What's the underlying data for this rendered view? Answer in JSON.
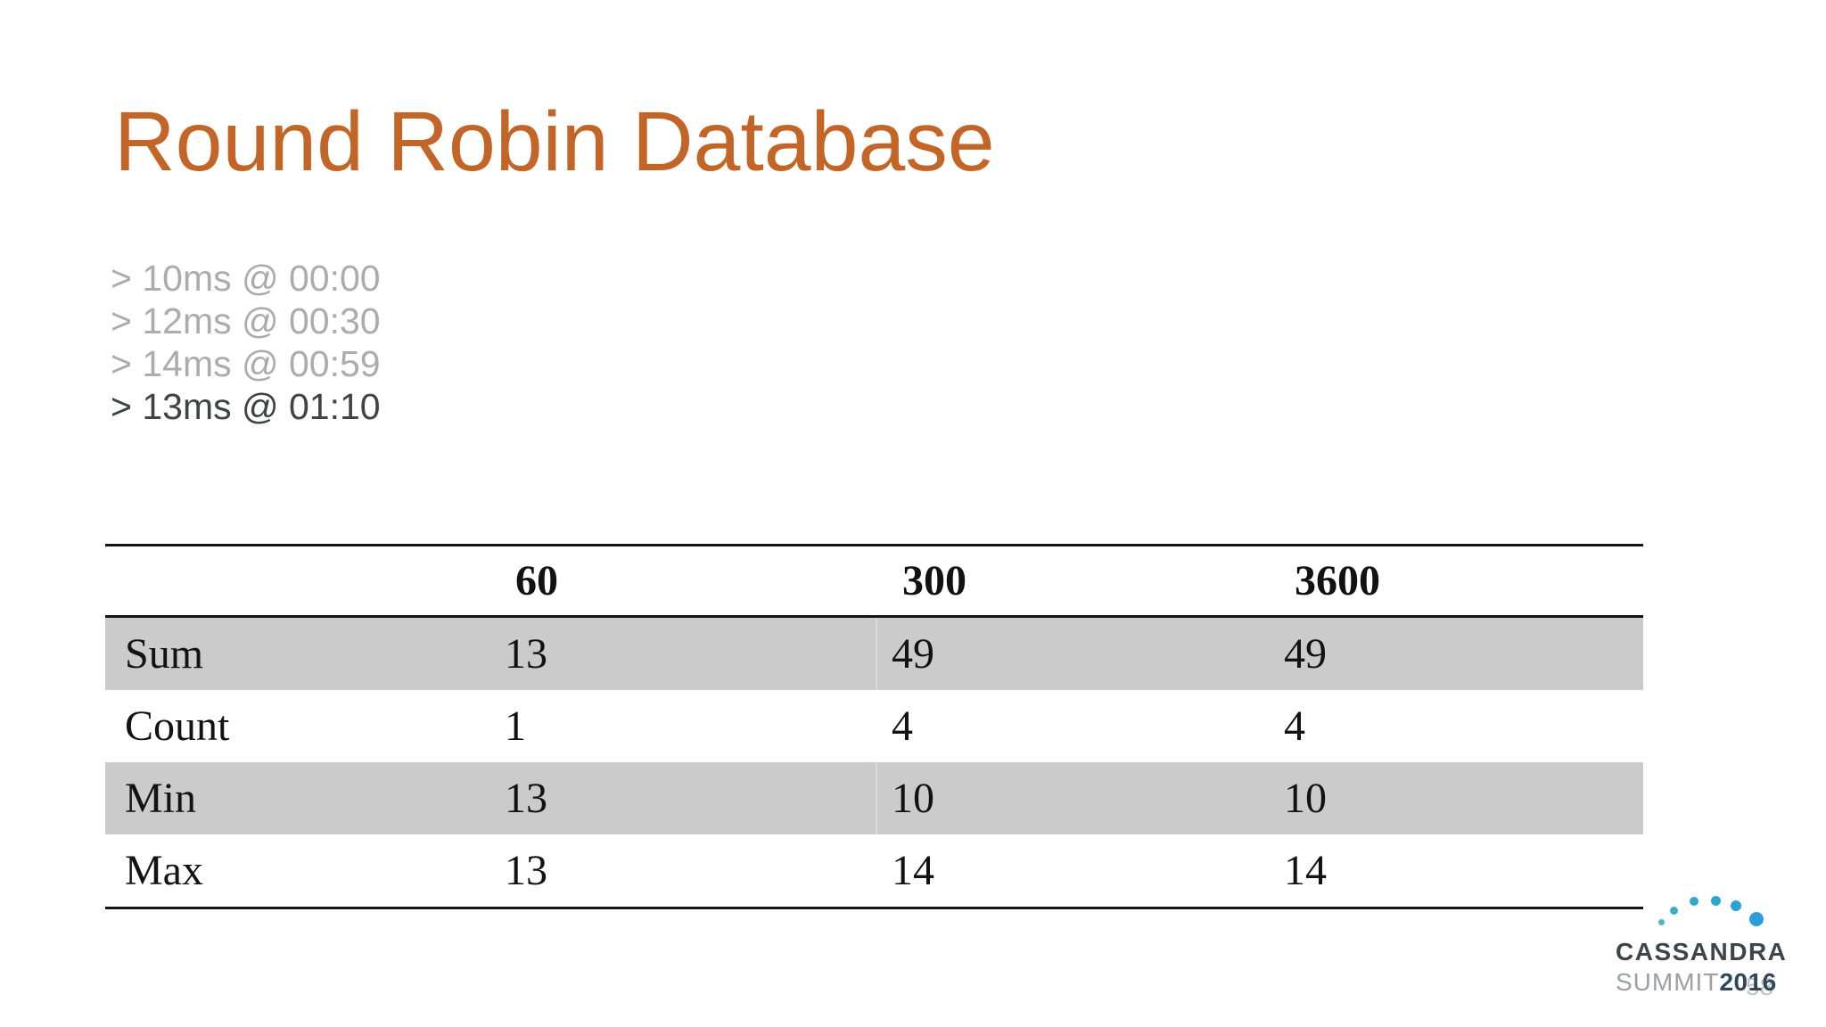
{
  "slide": {
    "title": "Round Robin Database",
    "title_color": "#C46528",
    "log_lines": [
      {
        "text": "> 10ms @ 00:00",
        "state": "past"
      },
      {
        "text": "> 12ms @ 00:30",
        "state": "past"
      },
      {
        "text": "> 14ms @ 00:59",
        "state": "past"
      },
      {
        "text": "> 13ms @ 01:10",
        "state": "current"
      }
    ],
    "table": {
      "column_headers": [
        "60",
        "300",
        "3600"
      ],
      "rows": [
        {
          "label": "Sum",
          "values": [
            "13",
            "49",
            "49"
          ],
          "shaded": true
        },
        {
          "label": "Count",
          "values": [
            "1",
            "4",
            "4"
          ],
          "shaded": false
        },
        {
          "label": "Min",
          "values": [
            "13",
            "10",
            "10"
          ],
          "shaded": true
        },
        {
          "label": "Max",
          "values": [
            "13",
            "14",
            "14"
          ],
          "shaded": false
        }
      ],
      "shade_color": "#CBCBCB",
      "line_color": "#141414"
    },
    "logo": {
      "line1": "CASSANDRA",
      "line2_left": "SUMMIT",
      "line2_right": "2016",
      "dot_colors": [
        "#52B5C6",
        "#3AADC8",
        "#30A9CC",
        "#2CA6D0",
        "#2AA3D3",
        "#2B9DD8"
      ],
      "text_color": "#3E454A",
      "year_color": "#2F4858"
    },
    "page_number": "58"
  },
  "chart_data": {
    "type": "table",
    "title": "Round Robin Database",
    "columns": [
      "",
      "60",
      "300",
      "3600"
    ],
    "rows": [
      [
        "Sum",
        13,
        49,
        49
      ],
      [
        "Count",
        1,
        4,
        4
      ],
      [
        "Min",
        13,
        10,
        10
      ],
      [
        "Max",
        13,
        14,
        14
      ]
    ],
    "annotations": [
      "> 10ms @ 00:00",
      "> 12ms @ 00:30",
      "> 14ms @ 00:59",
      "> 13ms @ 01:10"
    ],
    "shaded_rows": [
      "Sum",
      "Min"
    ]
  }
}
